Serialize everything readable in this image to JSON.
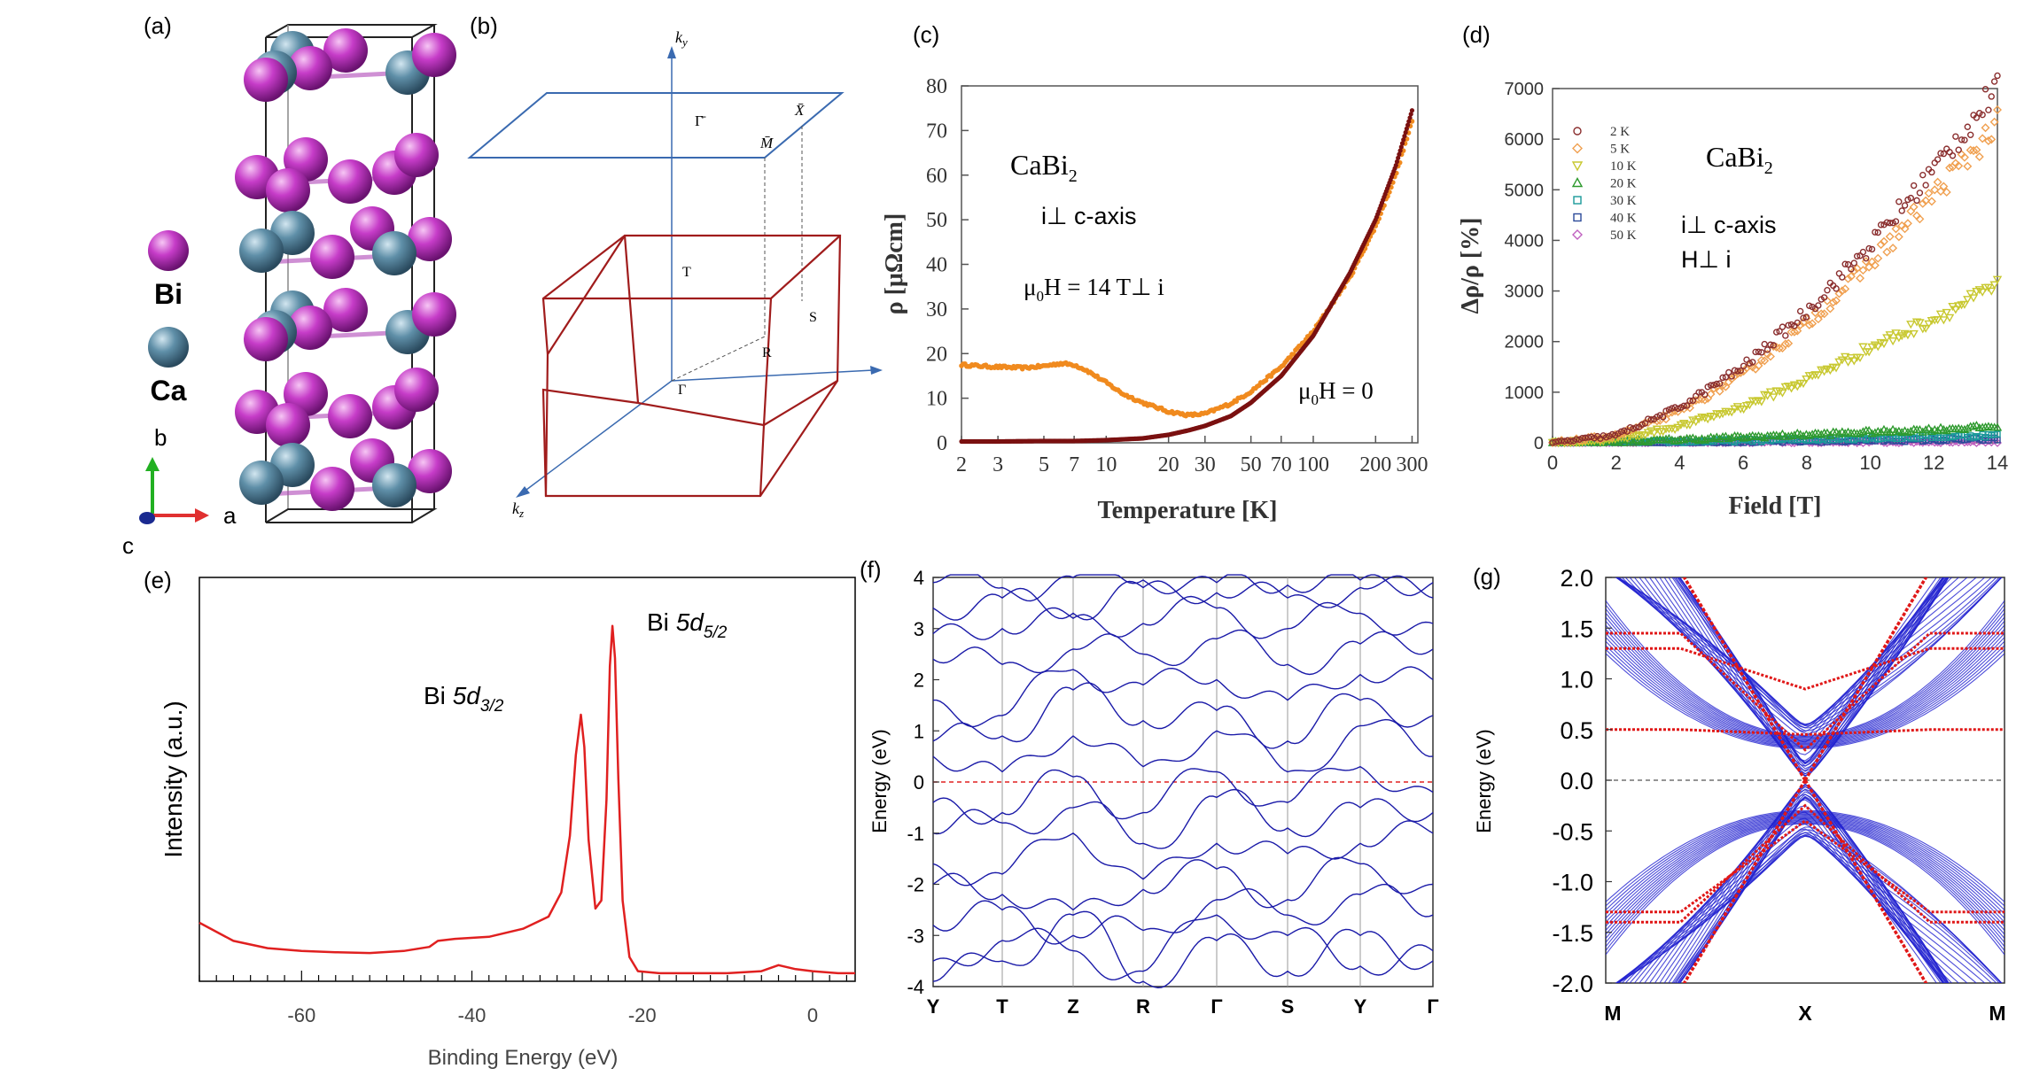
{
  "figure": {
    "panel_labels": [
      "(a)",
      "(b)",
      "(c)",
      "(d)",
      "(e)",
      "(f)",
      "(g)"
    ]
  },
  "panel_a": {
    "legend_bi": "Bi",
    "legend_ca": "Ca",
    "axis_b": "b",
    "axis_a": "a",
    "axis_c": "c",
    "colors": {
      "bi": "#c040c8",
      "ca": "#5f8fa8",
      "axis_b": "#22b022",
      "axis_a": "#e03030",
      "axis_c": "#2030a0"
    }
  },
  "panel_b": {
    "ky": "k",
    "ky_sub": "y",
    "kz": "k",
    "kz_sub": "z",
    "surface_points": [
      "Γ̄",
      "M̄",
      "X̄"
    ],
    "bulk_points": [
      "T",
      "R",
      "S",
      "Γ"
    ],
    "colors": {
      "surface": "#3a6ab0",
      "bulk": "#a01c1c",
      "axes": "#3a6ab0"
    }
  },
  "chart_data": [
    {
      "id": "c",
      "type": "scatter",
      "annotation_title": "CaBi",
      "annotation_title_sub": "2",
      "annotation_current": "i⊥  c-axis",
      "annotation_field_pre": "μ",
      "annotation_field_sub": "0",
      "annotation_field_post": "H = 14 T⊥  i",
      "annotation_zero_pre": "μ",
      "annotation_zero_sub": "0",
      "annotation_zero_post": "H = 0",
      "xlabel": "Temperature [K]",
      "ylabel": "ρ [μΩcm]",
      "xscale": "log",
      "xlim": [
        2,
        320
      ],
      "ylim": [
        0,
        80
      ],
      "xticks": [
        2,
        3,
        5,
        7,
        10,
        20,
        30,
        50,
        70,
        100,
        200,
        300
      ],
      "yticks": [
        0,
        10,
        20,
        30,
        40,
        50,
        60,
        70,
        80
      ],
      "series": [
        {
          "name": "μ0H = 14 T",
          "color": "#f08a1e",
          "x": [
            2,
            2.5,
            3,
            4,
            5,
            6,
            7,
            8,
            10,
            12,
            15,
            20,
            25,
            30,
            40,
            50,
            70,
            100,
            150,
            200,
            250,
            300
          ],
          "y": [
            17.5,
            17.2,
            17.0,
            16.8,
            17.2,
            17.8,
            17.5,
            16.3,
            13.5,
            11.0,
            9.0,
            7.0,
            6.2,
            6.5,
            8.8,
            11.5,
            17.0,
            25.0,
            37.0,
            48.5,
            60.0,
            72.0
          ]
        },
        {
          "name": "μ0H = 0",
          "color": "#7a1010",
          "x": [
            2,
            3,
            5,
            7,
            10,
            15,
            20,
            25,
            30,
            40,
            50,
            70,
            100,
            150,
            200,
            250,
            300
          ],
          "y": [
            0.3,
            0.3,
            0.4,
            0.4,
            0.6,
            1.0,
            1.8,
            2.8,
            3.8,
            6.0,
            9.0,
            15.0,
            24.0,
            38.0,
            50.0,
            62.0,
            74.5
          ]
        }
      ]
    },
    {
      "id": "d",
      "type": "scatter",
      "annotation_title": "CaBi",
      "annotation_title_sub": "2",
      "annotation_current": "i⊥  c-axis",
      "annotation_field": "H⊥  i",
      "xlabel": "Field [T]",
      "ylabel": "Δρ/ρ [%]",
      "xlim": [
        0,
        14
      ],
      "ylim": [
        0,
        7000
      ],
      "xticks": [
        0,
        2,
        4,
        6,
        8,
        10,
        12,
        14
      ],
      "yticks": [
        0,
        1000,
        2000,
        3000,
        4000,
        5000,
        6000,
        7000
      ],
      "legend_placement": "top-left",
      "series": [
        {
          "name": "2 K",
          "color": "#8a2e2e",
          "marker": "circle",
          "x": [
            0,
            2,
            4,
            6,
            8,
            10,
            12,
            14
          ],
          "y": [
            0,
            150,
            700,
            1500,
            2600,
            3900,
            5400,
            7000
          ]
        },
        {
          "name": "5 K",
          "color": "#f0a050",
          "marker": "diamond",
          "x": [
            0,
            2,
            4,
            6,
            8,
            10,
            12,
            14
          ],
          "y": [
            0,
            140,
            620,
            1350,
            2350,
            3550,
            4900,
            6300
          ]
        },
        {
          "name": "10 K",
          "color": "#c8c830",
          "marker": "triangle-down",
          "x": [
            0,
            2,
            4,
            6,
            8,
            10,
            12,
            14
          ],
          "y": [
            0,
            70,
            330,
            720,
            1250,
            1880,
            2450,
            3100
          ]
        },
        {
          "name": "20 K",
          "color": "#2e9a2e",
          "marker": "triangle",
          "x": [
            0,
            2,
            4,
            6,
            8,
            10,
            12,
            14
          ],
          "y": [
            0,
            20,
            60,
            110,
            160,
            210,
            260,
            320
          ]
        },
        {
          "name": "30 K",
          "color": "#1a9a9a",
          "marker": "square",
          "x": [
            0,
            2,
            4,
            6,
            8,
            10,
            12,
            14
          ],
          "y": [
            0,
            8,
            25,
            45,
            70,
            95,
            120,
            150
          ]
        },
        {
          "name": "40 K",
          "color": "#2c4a9a",
          "marker": "square",
          "x": [
            0,
            2,
            4,
            6,
            8,
            10,
            12,
            14
          ],
          "y": [
            0,
            4,
            12,
            22,
            34,
            46,
            58,
            72
          ]
        },
        {
          "name": "50 K",
          "color": "#c060c0",
          "marker": "diamond",
          "x": [
            0,
            2,
            4,
            6,
            8,
            10,
            12,
            14
          ],
          "y": [
            0,
            2,
            6,
            10,
            15,
            20,
            25,
            30
          ]
        }
      ]
    },
    {
      "id": "e",
      "type": "line",
      "annotation_d32_pre": "Bi ",
      "annotation_d32_main": "5d",
      "annotation_d32_sub": "3/2",
      "annotation_d52_pre": "Bi ",
      "annotation_d52_main": "5d",
      "annotation_d52_sub": "5/2",
      "xlabel": "Binding Energy (eV)",
      "ylabel": "Intensity (a.u.)",
      "xlim": [
        -72,
        5
      ],
      "ylim": [
        0,
        1.0
      ],
      "xticks": [
        -60,
        -40,
        -20,
        0
      ],
      "color": "#e02020",
      "x": [
        -72,
        -68,
        -64,
        -60,
        -56,
        -52,
        -48,
        -45,
        -44,
        -42,
        -38,
        -34,
        -31,
        -29.5,
        -28.5,
        -27.8,
        -27.2,
        -26.8,
        -26.3,
        -25.5,
        -24.8,
        -24.2,
        -23.8,
        -23.5,
        -23.2,
        -22.8,
        -22.3,
        -21.5,
        -20.5,
        -18,
        -14,
        -10,
        -6,
        -4,
        -2,
        0,
        3,
        5
      ],
      "y": [
        0.145,
        0.1,
        0.082,
        0.075,
        0.072,
        0.07,
        0.075,
        0.085,
        0.1,
        0.105,
        0.11,
        0.13,
        0.16,
        0.22,
        0.36,
        0.56,
        0.66,
        0.58,
        0.35,
        0.18,
        0.2,
        0.45,
        0.78,
        0.88,
        0.8,
        0.5,
        0.2,
        0.06,
        0.025,
        0.02,
        0.02,
        0.02,
        0.025,
        0.04,
        0.03,
        0.025,
        0.02,
        0.02
      ]
    },
    {
      "id": "f",
      "type": "line",
      "ylabel": "Energy (eV)",
      "ylim": [
        -4,
        4
      ],
      "yticks": [
        -4,
        -3,
        -2,
        -1,
        0,
        1,
        2,
        3,
        4
      ],
      "categories": [
        "Y",
        "T",
        "Z",
        "R",
        "Γ",
        "S",
        "Y",
        "Γ"
      ],
      "fermi_level": 0,
      "color": "#1a1aa8",
      "fermi_color": "#e02020"
    },
    {
      "id": "g",
      "type": "line",
      "ylabel": "Energy (eV)",
      "ylim": [
        -2.0,
        2.0
      ],
      "yticks": [
        "2.0",
        "1.5",
        "1.0",
        "0.5",
        "0.0",
        "-0.5",
        "-1.0",
        "-1.5",
        "-2.0"
      ],
      "categories": [
        "M",
        "X",
        "M"
      ],
      "fermi_level": 0,
      "bulk_color": "#2020d0",
      "surface_color": "#e01818"
    }
  ]
}
